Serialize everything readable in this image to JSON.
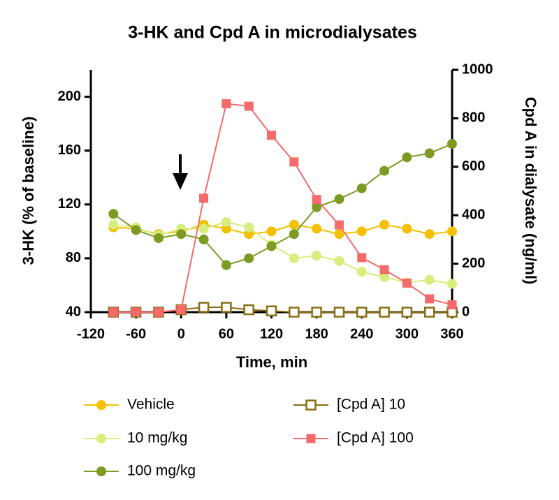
{
  "chart_data": {
    "type": "line",
    "title": "3-HK and Cpd A in microdialysates",
    "x_label": "Time, min",
    "y_label": "3-HK (% of baseline)",
    "y2_label": "Cpd A in dialysate (ng/ml)",
    "x": [
      -90,
      -60,
      -30,
      0,
      30,
      60,
      90,
      120,
      150,
      180,
      210,
      240,
      270,
      300,
      330,
      360
    ],
    "xlim": [
      -120,
      360
    ],
    "xticks": [
      -120,
      -60,
      0,
      60,
      120,
      180,
      240,
      300,
      360
    ],
    "ylim": [
      40,
      220
    ],
    "yticks": [
      40,
      80,
      120,
      160,
      200
    ],
    "y2lim": [
      0,
      1000
    ],
    "y2ticks": [
      0,
      200,
      400,
      600,
      800,
      1000
    ],
    "series": [
      {
        "name": "Vehicle",
        "color": "#f5c000",
        "marker": "circle",
        "values": [
          103,
          102,
          98,
          100,
          105,
          102,
          98,
          100,
          105,
          102,
          98,
          100,
          105,
          102,
          98,
          100
        ]
      },
      {
        "name": "10 mg/kg",
        "color": "#d6ee7c",
        "marker": "circle",
        "values": [
          105,
          103,
          97,
          102,
          102,
          107,
          103,
          90,
          80,
          82,
          78,
          70,
          66,
          62,
          64,
          61
        ]
      },
      {
        "name": "100 mg/kg",
        "color": "#7b9b22",
        "marker": "circle",
        "values": [
          113,
          101,
          95,
          98,
          94,
          75,
          80,
          89,
          98,
          118,
          124,
          132,
          145,
          155,
          158,
          165
        ]
      },
      {
        "name": "[Cpd A] 10",
        "color": "#8a6d10",
        "marker": "square-open",
        "axis": "y2",
        "values": [
          0,
          0,
          0,
          10,
          20,
          20,
          10,
          5,
          0,
          0,
          0,
          0,
          0,
          0,
          0,
          0
        ]
      },
      {
        "name": "[Cpd A] 100",
        "color": "#f56a6a",
        "marker": "square",
        "axis": "y2",
        "values": [
          0,
          0,
          0,
          10,
          470,
          860,
          850,
          730,
          620,
          465,
          360,
          225,
          175,
          120,
          55,
          30
        ]
      }
    ]
  }
}
